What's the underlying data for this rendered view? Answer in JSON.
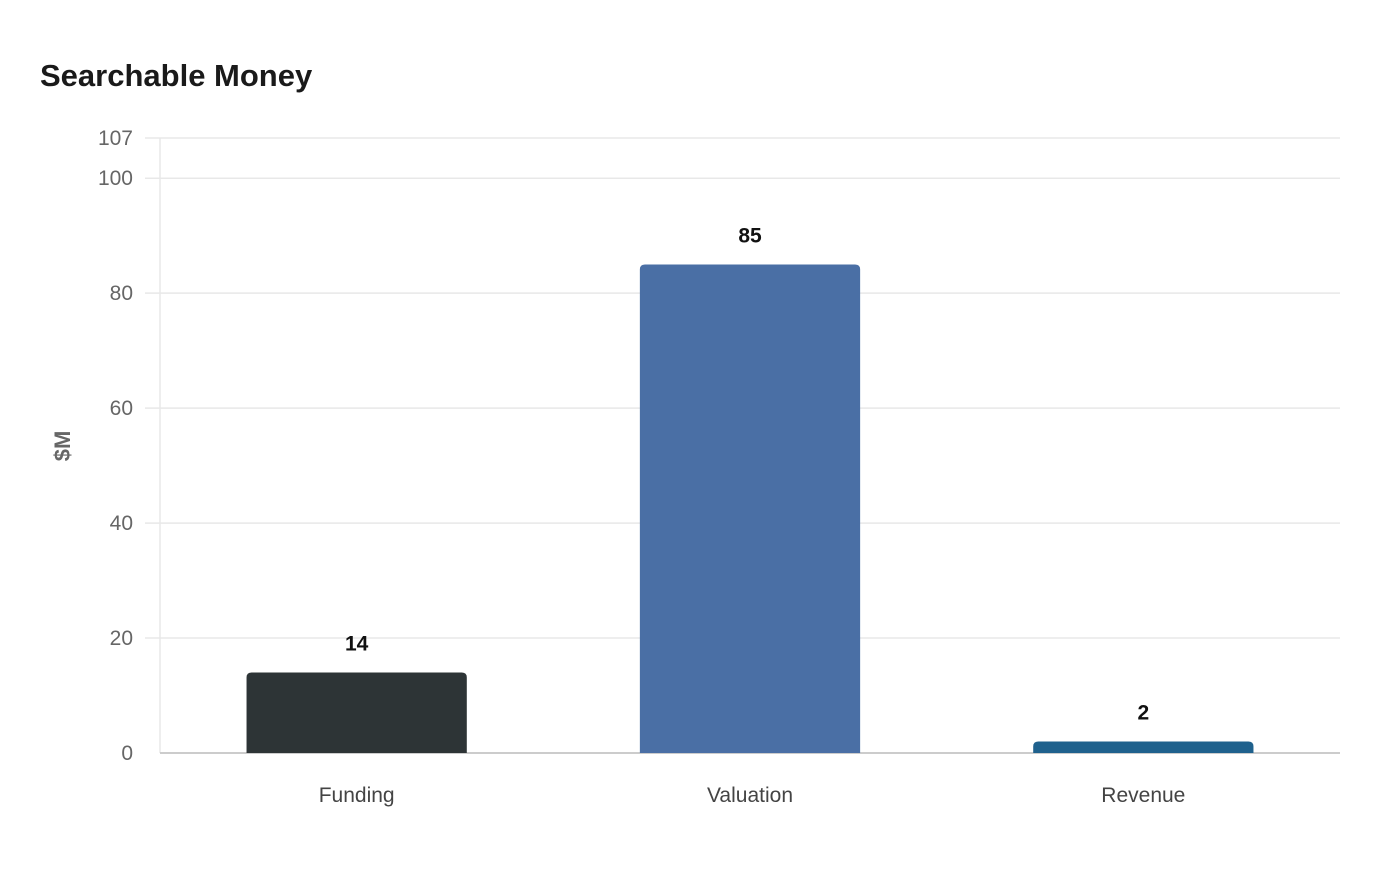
{
  "chart_data": {
    "type": "bar",
    "title": "Searchable Money",
    "xlabel": "",
    "ylabel": "$M",
    "categories": [
      "Funding",
      "Valuation",
      "Revenue"
    ],
    "values": [
      14,
      85,
      2
    ],
    "colors": [
      "#2d3436",
      "#4a6fa5",
      "#1f618d"
    ],
    "ylim": [
      0,
      107
    ],
    "yticks": [
      0,
      20,
      40,
      60,
      80,
      100,
      107
    ],
    "grid": true,
    "legend": "none",
    "gridline_color": "#e8e8e8",
    "axis_color": "#cccccc"
  }
}
